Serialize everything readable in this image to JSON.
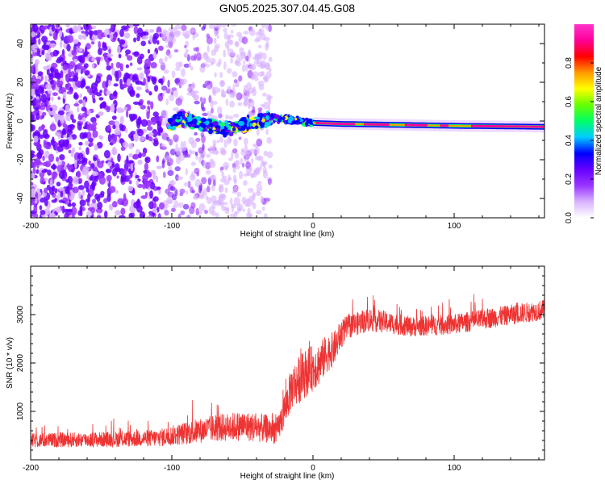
{
  "title": "GN05.2025.307.04.45.G08",
  "chart_data": [
    {
      "type": "heatmap",
      "title": "GN05.2025.307.04.45.G08",
      "xlabel": "Height of straight line (km)",
      "ylabel": "Frequency (Hz)",
      "xlim": [
        -200,
        164
      ],
      "ylim": [
        -50,
        50
      ],
      "x_ticks": [
        -200,
        -100,
        0,
        100
      ],
      "x_tick_labels": [
        "-200",
        "-100",
        "0",
        "100"
      ],
      "y_ticks": [
        -40,
        -20,
        0,
        20,
        40
      ],
      "y_tick_labels": [
        "-40",
        "-20",
        "0",
        "20",
        "40"
      ],
      "noise_region_x": [
        -200,
        -30
      ],
      "signal_start_x": -102,
      "signal_track": [
        {
          "x": -102,
          "y": -1
        },
        {
          "x": -90,
          "y": 1
        },
        {
          "x": -80,
          "y": -1
        },
        {
          "x": -70,
          "y": -3
        },
        {
          "x": -60,
          "y": -4
        },
        {
          "x": -50,
          "y": -2
        },
        {
          "x": -40,
          "y": -1
        },
        {
          "x": -30,
          "y": 2
        },
        {
          "x": -20,
          "y": 1
        },
        {
          "x": -10,
          "y": 0
        },
        {
          "x": 0,
          "y": -1
        },
        {
          "x": 20,
          "y": -1.5
        },
        {
          "x": 60,
          "y": -2
        },
        {
          "x": 100,
          "y": -2.5
        },
        {
          "x": 164,
          "y": -3
        }
      ],
      "colorbar": {
        "label": "Normalized spectral amplitude",
        "ticks": [
          0.0,
          0.2,
          0.4,
          0.6,
          0.8
        ],
        "tick_labels": [
          "0.0",
          "0.2",
          "0.4",
          "0.6",
          "0.8"
        ],
        "range": [
          0,
          1
        ],
        "colors": [
          "#ffffff",
          "#d9b3ff",
          "#9933ff",
          "#6600ff",
          "#0000ff",
          "#00ccff",
          "#00ff66",
          "#66ff00",
          "#ffff00",
          "#ff9900",
          "#ff0000",
          "#ff0099",
          "#ff33cc"
        ]
      }
    },
    {
      "type": "line",
      "xlabel": "Height of straight line (km)",
      "ylabel": "SNR (10 * v/v)",
      "xlim": [
        -200,
        164
      ],
      "ylim": [
        0,
        4000
      ],
      "x_ticks": [
        -200,
        -100,
        0,
        100
      ],
      "x_tick_labels": [
        "-200",
        "-100",
        "0",
        "100"
      ],
      "y_ticks": [
        1000,
        2000,
        3000
      ],
      "y_tick_labels": [
        "1000",
        "2000",
        "3000"
      ],
      "color": "#ee3333",
      "series": [
        {
          "name": "SNR",
          "x": [
            -200,
            -150,
            -110,
            -90,
            -70,
            -50,
            -35,
            -25,
            -15,
            -10,
            -5,
            0,
            5,
            10,
            15,
            20,
            25,
            30,
            40,
            50,
            70,
            100,
            130,
            164
          ],
          "mean": [
            400,
            420,
            450,
            550,
            650,
            700,
            650,
            600,
            1500,
            1650,
            1800,
            1900,
            2000,
            2200,
            2300,
            2600,
            2750,
            2800,
            2900,
            2850,
            2750,
            2800,
            2950,
            3100
          ],
          "spread": [
            300,
            320,
            360,
            480,
            560,
            620,
            600,
            560,
            900,
            1000,
            1000,
            950,
            900,
            800,
            700,
            600,
            500,
            480,
            500,
            460,
            420,
            420,
            420,
            420
          ]
        }
      ]
    }
  ]
}
